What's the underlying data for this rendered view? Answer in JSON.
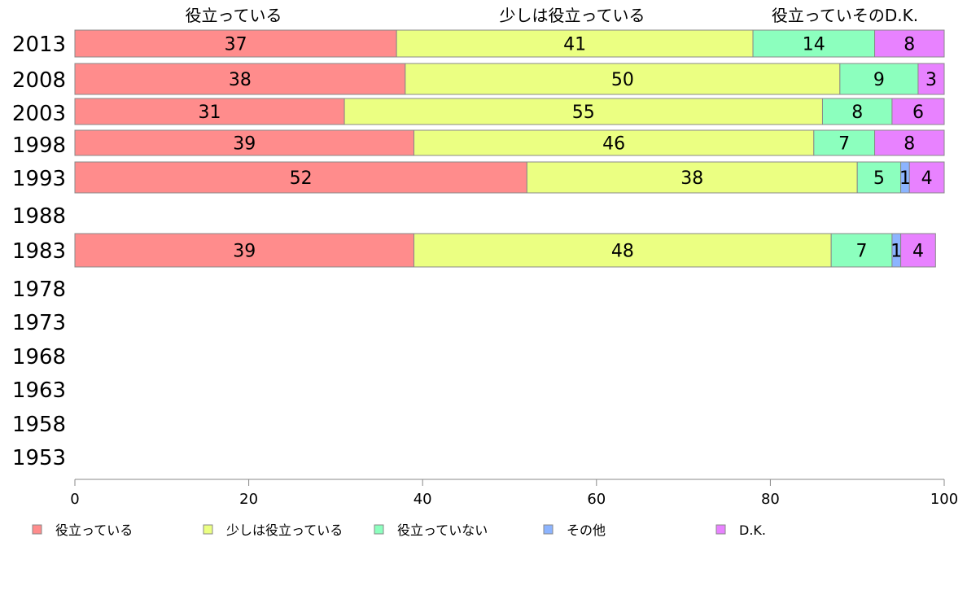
{
  "chart_data": {
    "type": "bar",
    "orientation": "horizontal",
    "stacked": true,
    "categories": [
      "2013",
      "2008",
      "2003",
      "1998",
      "1993",
      "1988",
      "1983",
      "1978",
      "1973",
      "1968",
      "1963",
      "1958",
      "1953"
    ],
    "series": [
      {
        "name": "役立っている",
        "color": "#ff8c8c",
        "values": [
          37,
          38,
          31,
          39,
          52,
          null,
          39,
          null,
          null,
          null,
          null,
          null,
          null
        ]
      },
      {
        "name": "少しは役立っている",
        "color": "#ebff82",
        "values": [
          41,
          50,
          55,
          46,
          38,
          null,
          48,
          null,
          null,
          null,
          null,
          null,
          null
        ]
      },
      {
        "name": "役立っていない",
        "color": "#8cffbe",
        "values": [
          14,
          9,
          8,
          7,
          5,
          null,
          7,
          null,
          null,
          null,
          null,
          null,
          null
        ]
      },
      {
        "name": "その他",
        "color": "#8cb4ff",
        "values": [
          0,
          0,
          0,
          0,
          1,
          null,
          1,
          null,
          null,
          null,
          null,
          null,
          null
        ]
      },
      {
        "name": "D.K.",
        "color": "#e882ff",
        "values": [
          8,
          3,
          6,
          8,
          4,
          null,
          4,
          null,
          null,
          null,
          null,
          null,
          null
        ]
      }
    ],
    "top_labels": [
      "役立っている",
      "少しは役立っている",
      "役立っていその",
      "D.K."
    ],
    "xlim": [
      0,
      100
    ],
    "xticks": [
      0,
      20,
      40,
      60,
      80,
      100
    ],
    "legend_position": "bottom",
    "grid": false
  }
}
